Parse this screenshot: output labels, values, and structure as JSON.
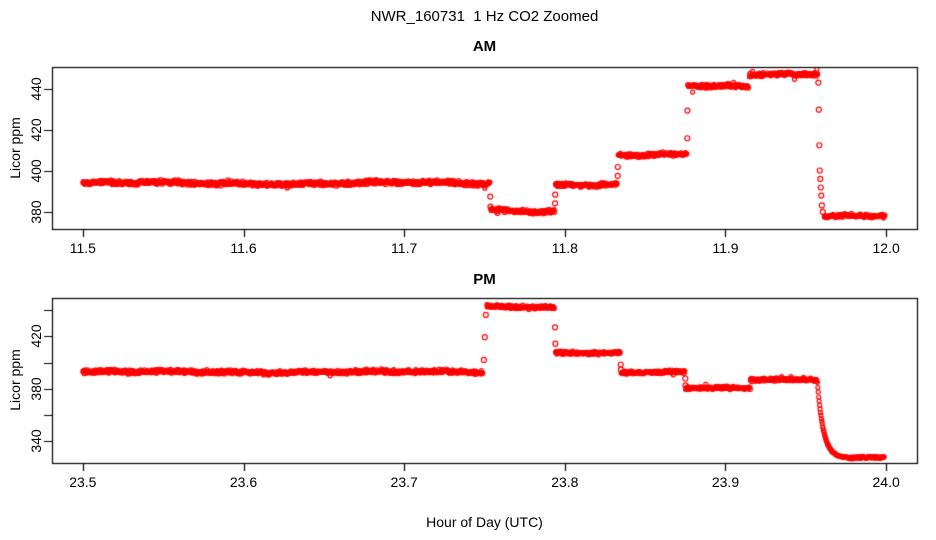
{
  "figure": {
    "title": "NWR_160731  1 Hz CO2 Zoomed",
    "xlabel": "Hour of Day (UTC)",
    "background_color": "#FFFFFF",
    "axis_color": "#000000",
    "point_color": "#FF0000"
  },
  "chart_data": [
    {
      "type": "scatter",
      "title": "AM",
      "ylabel": "Licor ppm",
      "marker": "open-circle",
      "color": "#FF0000",
      "sample_rate_hz": 1,
      "xlim": [
        11.4808,
        12.0192
      ],
      "ylim": [
        371.7,
        450.6
      ],
      "grid": false,
      "x_ticks": [
        {
          "v": 11.5,
          "label": "11.5"
        },
        {
          "v": 11.6,
          "label": "11.6"
        },
        {
          "v": 11.7,
          "label": "11.7"
        },
        {
          "v": 11.8,
          "label": "11.8"
        },
        {
          "v": 11.9,
          "label": "11.9"
        },
        {
          "v": 12.0,
          "label": "12.0"
        }
      ],
      "y_ticks": [
        {
          "v": 380,
          "label": "380"
        },
        {
          "v": 400,
          "label": "400"
        },
        {
          "v": 420,
          "label": "420"
        },
        {
          "v": 440,
          "label": "440"
        }
      ],
      "segments": [
        {
          "t0": 11.5,
          "t1": 11.7534,
          "v": 394.0,
          "noise": 1.3
        },
        {
          "t0": 11.7539,
          "t1": 11.7937,
          "v": 380.3,
          "noise": 1.2
        },
        {
          "t0": 11.7942,
          "t1": 11.8327,
          "v": 393.6,
          "noise": 1.2
        },
        {
          "t0": 11.8332,
          "t1": 11.876,
          "v": 407.6,
          "noise": 1.1
        },
        {
          "t0": 11.8765,
          "t1": 11.9144,
          "v": 441.2,
          "noise": 1.1
        },
        {
          "t0": 11.9149,
          "t1": 11.9575,
          "v": 447.4,
          "noise": 1.1
        },
        {
          "t0": 11.9615,
          "t1": 11.9995,
          "v": 377.8,
          "noise": 1.0
        }
      ],
      "decays": [],
      "singles": [
        [
          11.7536,
          387.5
        ],
        [
          11.7537,
          382.6
        ],
        [
          11.7939,
          384.2
        ],
        [
          11.794,
          388.4
        ],
        [
          11.8329,
          397.6
        ],
        [
          11.833,
          401.9
        ],
        [
          11.8762,
          415.9
        ],
        [
          11.8763,
          429.4
        ],
        [
          11.9578,
          443.0
        ],
        [
          11.9581,
          429.8
        ],
        [
          11.9584,
          412.5
        ],
        [
          11.9587,
          400.2
        ],
        [
          11.959,
          396.1
        ],
        [
          11.9593,
          391.9
        ],
        [
          11.9596,
          388.0
        ],
        [
          11.96,
          383.2
        ],
        [
          11.9606,
          380.0
        ]
      ]
    },
    {
      "type": "scatter",
      "title": "PM",
      "ylabel": "Licor ppm",
      "marker": "open-circle",
      "color": "#FF0000",
      "sample_rate_hz": 1,
      "xlim": [
        23.4808,
        24.0192
      ],
      "ylim": [
        323.0,
        449.5
      ],
      "grid": false,
      "x_ticks": [
        {
          "v": 23.5,
          "label": "23.5"
        },
        {
          "v": 23.6,
          "label": "23.6"
        },
        {
          "v": 23.7,
          "label": "23.7"
        },
        {
          "v": 23.8,
          "label": "23.8"
        },
        {
          "v": 23.9,
          "label": "23.9"
        },
        {
          "v": 24.0,
          "label": "24.0"
        }
      ],
      "y_ticks": [
        {
          "v": 340,
          "label": "340"
        },
        {
          "v": 360,
          "label": ""
        },
        {
          "v": 380,
          "label": "380"
        },
        {
          "v": 400,
          "label": ""
        },
        {
          "v": 420,
          "label": "420"
        },
        {
          "v": 440,
          "label": ""
        }
      ],
      "segments": [
        {
          "t0": 23.5,
          "t1": 23.749,
          "v": 392.8,
          "noise": 1.8
        },
        {
          "t0": 23.7515,
          "t1": 23.7937,
          "v": 442.5,
          "noise": 1.5
        },
        {
          "t0": 23.7942,
          "t1": 23.8346,
          "v": 407.8,
          "noise": 1.5
        },
        {
          "t0": 23.835,
          "t1": 23.8748,
          "v": 392.3,
          "noise": 1.5
        },
        {
          "t0": 23.8752,
          "t1": 23.915,
          "v": 380.4,
          "noise": 1.5
        },
        {
          "t0": 23.9155,
          "t1": 23.957,
          "v": 387.3,
          "noise": 1.5
        },
        {
          "t0": 23.976,
          "t1": 23.999,
          "v": 326.8,
          "noise": 1.0
        }
      ],
      "decays": [
        {
          "t0": 23.9572,
          "t1": 23.9762,
          "v0": 385.0,
          "v1": 326.8,
          "tau": 0.0038,
          "noise": 0.5
        }
      ],
      "singles": [
        [
          23.7496,
          402.0
        ],
        [
          23.7502,
          419.5
        ],
        [
          23.7508,
          436.5
        ],
        [
          23.7939,
          427.0
        ],
        [
          23.7941,
          414.5
        ],
        [
          23.8348,
          398.5
        ],
        [
          23.8349,
          394.6
        ],
        [
          23.875,
          387.8
        ],
        [
          23.8751,
          382.5
        ],
        [
          23.9152,
          379.8
        ]
      ]
    }
  ]
}
